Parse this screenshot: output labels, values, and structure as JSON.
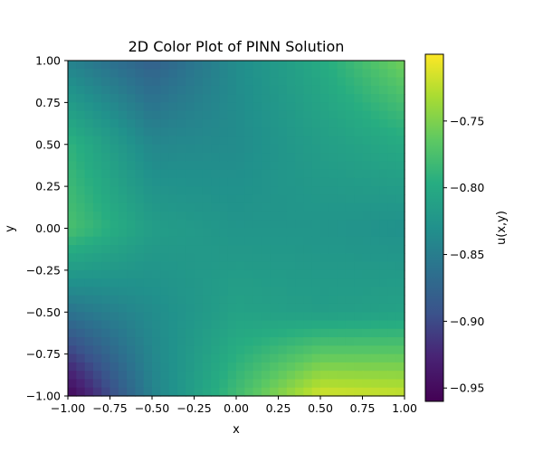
{
  "chart_data": {
    "type": "heatmap",
    "title": "2D Color Plot of PINN Solution",
    "xlabel": "x",
    "ylabel": "y",
    "xlim": [
      -1.0,
      1.0
    ],
    "ylim": [
      -1.0,
      1.0
    ],
    "x_ticks": [
      -1.0,
      -0.75,
      -0.5,
      -0.25,
      0.0,
      0.25,
      0.5,
      0.75,
      1.0
    ],
    "x_tick_labels": [
      "−1.00",
      "−0.75",
      "−0.50",
      "−0.25",
      "0.00",
      "0.25",
      "0.50",
      "0.75",
      "1.00"
    ],
    "y_ticks": [
      -1.0,
      -0.75,
      -0.5,
      -0.25,
      0.0,
      0.25,
      0.5,
      0.75,
      1.0
    ],
    "y_tick_labels": [
      "−1.00",
      "−0.75",
      "−0.50",
      "−0.25",
      "0.00",
      "0.25",
      "0.50",
      "0.75",
      "1.00"
    ],
    "colormap": "viridis",
    "colorbar": {
      "label": "u(x,y)",
      "range": [
        -0.96,
        -0.7
      ],
      "ticks": [
        -0.95,
        -0.9,
        -0.85,
        -0.8,
        -0.75
      ],
      "tick_labels": [
        "−0.95",
        "−0.90",
        "−0.85",
        "−0.80",
        "−0.75"
      ]
    },
    "grid": {
      "x": [
        -1.0,
        -0.5,
        0.0,
        0.5,
        1.0
      ],
      "y": [
        1.0,
        0.5,
        0.0,
        -0.5,
        -1.0
      ],
      "z": [
        [
          -0.845,
          -0.88,
          -0.835,
          -0.8,
          -0.755
        ],
        [
          -0.79,
          -0.84,
          -0.835,
          -0.815,
          -0.8
        ],
        [
          -0.775,
          -0.815,
          -0.825,
          -0.825,
          -0.83
        ],
        [
          -0.86,
          -0.835,
          -0.81,
          -0.815,
          -0.81
        ],
        [
          -0.955,
          -0.845,
          -0.78,
          -0.715,
          -0.72
        ]
      ]
    }
  }
}
